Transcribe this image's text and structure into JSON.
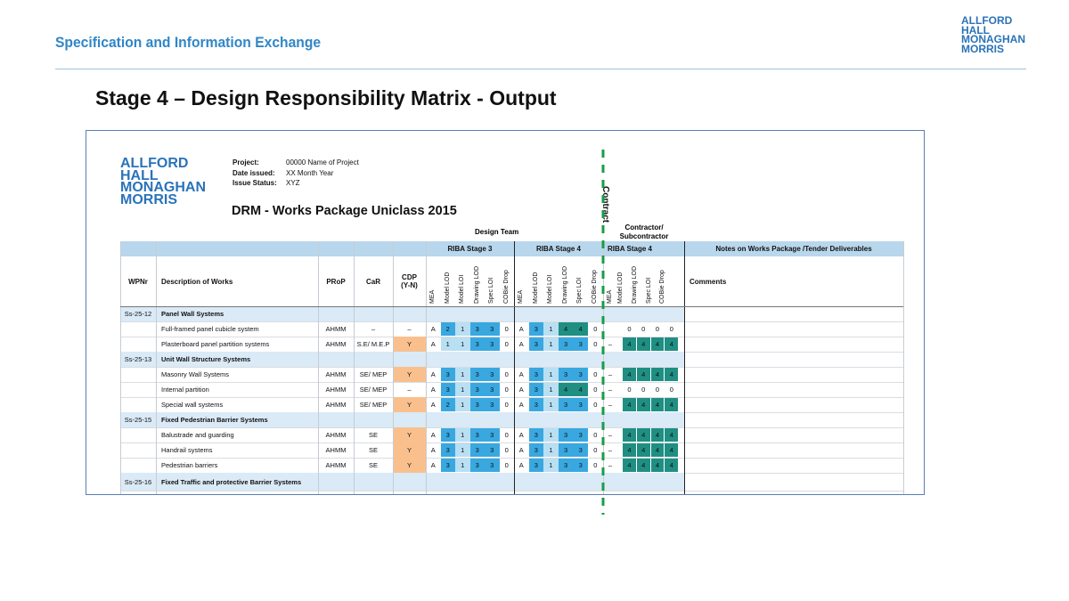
{
  "header": {
    "title": "Specification and Information Exchange",
    "logo_lines": [
      "ALLFORD",
      "HALL",
      "MONAGHAN",
      "MORRIS"
    ]
  },
  "slide_title": "Stage 4 – Design Responsibility Matrix - Output",
  "sheet": {
    "logo_lines": [
      "ALLFORD",
      "HALL",
      "MONAGHAN",
      "MORRIS"
    ],
    "project_label": "Project:",
    "project_value": "00000 Name of Project",
    "date_label": "Date issued:",
    "date_value": "XX Month Year",
    "status_label": "Issue Status:",
    "status_value": "XYZ",
    "drm_title": "DRM - Works Package Uniclass 2015",
    "design_team": "Design Team",
    "contractor_line1": "Contractor/",
    "contractor_line2": "Subcontractor",
    "contract_label": "Contract",
    "groups": {
      "riba3": "RIBA Stage 3",
      "riba4": "RIBA Stage 4",
      "riba4c": "RIBA Stage 4",
      "notes": "Notes on Works Package /Tender Deliverables"
    },
    "col_headers": {
      "wpnr": "WPNr",
      "desc": "Description of Works",
      "prop": "PRoP",
      "car": "CaR",
      "cdp1": "CDP",
      "cdp2": "(Y-N)",
      "comments": "Comments"
    },
    "sub_headers_design": [
      "MEA",
      "Model LOD",
      "Model LOI",
      "Drawing LOD",
      "Spec LOI",
      "COBie Drop"
    ],
    "sub_headers_contract": [
      "MEA",
      "Model LOD",
      "Drawing LOD",
      "Spec LOI",
      "COBie Drop"
    ],
    "rows": [
      {
        "type": "section",
        "code": "Ss-25-12",
        "title": "Panel Wall Systems"
      },
      {
        "type": "item",
        "desc": "Full-framed panel cubicle system",
        "prop": "AHMM",
        "car": "–",
        "cdp": "–",
        "r3": [
          "A",
          "2",
          "1",
          "3",
          "3",
          "0"
        ],
        "r4": [
          "A",
          "3",
          "1",
          "4",
          "4",
          "0"
        ],
        "c4": [
          "",
          "0",
          "0",
          "0",
          "0"
        ]
      },
      {
        "type": "item",
        "desc": "Plasterboard panel partition systems",
        "prop": "AHMM",
        "car": "S.E/ M.E.P",
        "cdp": "Y",
        "r3": [
          "A",
          "1",
          "1",
          "3",
          "3",
          "0"
        ],
        "r4": [
          "A",
          "3",
          "1",
          "3",
          "3",
          "0"
        ],
        "c4": [
          "–",
          "4",
          "4",
          "4",
          "4"
        ]
      },
      {
        "type": "section",
        "code": "Ss-25-13",
        "title": "Unit Wall Structure Systems"
      },
      {
        "type": "item",
        "desc": "Masonry Wall Systems",
        "prop": "AHMM",
        "car": "SE/ MEP",
        "cdp": "Y",
        "r3": [
          "A",
          "3",
          "1",
          "3",
          "3",
          "0"
        ],
        "r4": [
          "A",
          "3",
          "1",
          "3",
          "3",
          "0"
        ],
        "c4": [
          "–",
          "4",
          "4",
          "4",
          "4"
        ]
      },
      {
        "type": "item",
        "desc": "Internal partition",
        "prop": "AHMM",
        "car": "SE/ MEP",
        "cdp": "–",
        "r3": [
          "A",
          "3",
          "1",
          "3",
          "3",
          "0"
        ],
        "r4": [
          "A",
          "3",
          "1",
          "4",
          "4",
          "0"
        ],
        "c4": [
          "–",
          "0",
          "0",
          "0",
          "0"
        ]
      },
      {
        "type": "item",
        "desc": "Special wall systems",
        "prop": "AHMM",
        "car": "SE/ MEP",
        "cdp": "Y",
        "r3": [
          "A",
          "2",
          "1",
          "3",
          "3",
          "0"
        ],
        "r4": [
          "A",
          "3",
          "1",
          "3",
          "3",
          "0"
        ],
        "c4": [
          "–",
          "4",
          "4",
          "4",
          "4"
        ]
      },
      {
        "type": "section",
        "code": "Ss-25-15",
        "title": "Fixed Pedestrian Barrier Systems"
      },
      {
        "type": "item",
        "desc": "Balustrade and guarding",
        "prop": "AHMM",
        "car": "SE",
        "cdp": "Y",
        "r3": [
          "A",
          "3",
          "1",
          "3",
          "3",
          "0"
        ],
        "r4": [
          "A",
          "3",
          "1",
          "3",
          "3",
          "0"
        ],
        "c4": [
          "–",
          "4",
          "4",
          "4",
          "4"
        ]
      },
      {
        "type": "item",
        "desc": "Handrail systems",
        "prop": "AHMM",
        "car": "SE",
        "cdp": "Y",
        "r3": [
          "A",
          "3",
          "1",
          "3",
          "3",
          "0"
        ],
        "r4": [
          "A",
          "3",
          "1",
          "3",
          "3",
          "0"
        ],
        "c4": [
          "–",
          "4",
          "4",
          "4",
          "4"
        ]
      },
      {
        "type": "item",
        "desc": "Pedestrian barriers",
        "prop": "AHMM",
        "car": "SE",
        "cdp": "Y",
        "r3": [
          "A",
          "3",
          "1",
          "3",
          "3",
          "0"
        ],
        "r4": [
          "A",
          "3",
          "1",
          "3",
          "3",
          "0"
        ],
        "c4": [
          "–",
          "4",
          "4",
          "4",
          "4"
        ]
      },
      {
        "type": "section",
        "code": "Ss-25-16",
        "title": "Fixed Traffic and protective Barrier Systems"
      }
    ],
    "colors": {
      "group_band": "#b9d7ec",
      "section_band": "#daeaf7",
      "cdp_yes": "#f9c08e",
      "lod_1": "#b9dff3",
      "lod_2": "#39a8e0",
      "lod_3": "#39a8e0",
      "lod_4": "#1f8f83",
      "contract_4": "#1f8f83",
      "contract_line": "#1a9c46"
    }
  }
}
